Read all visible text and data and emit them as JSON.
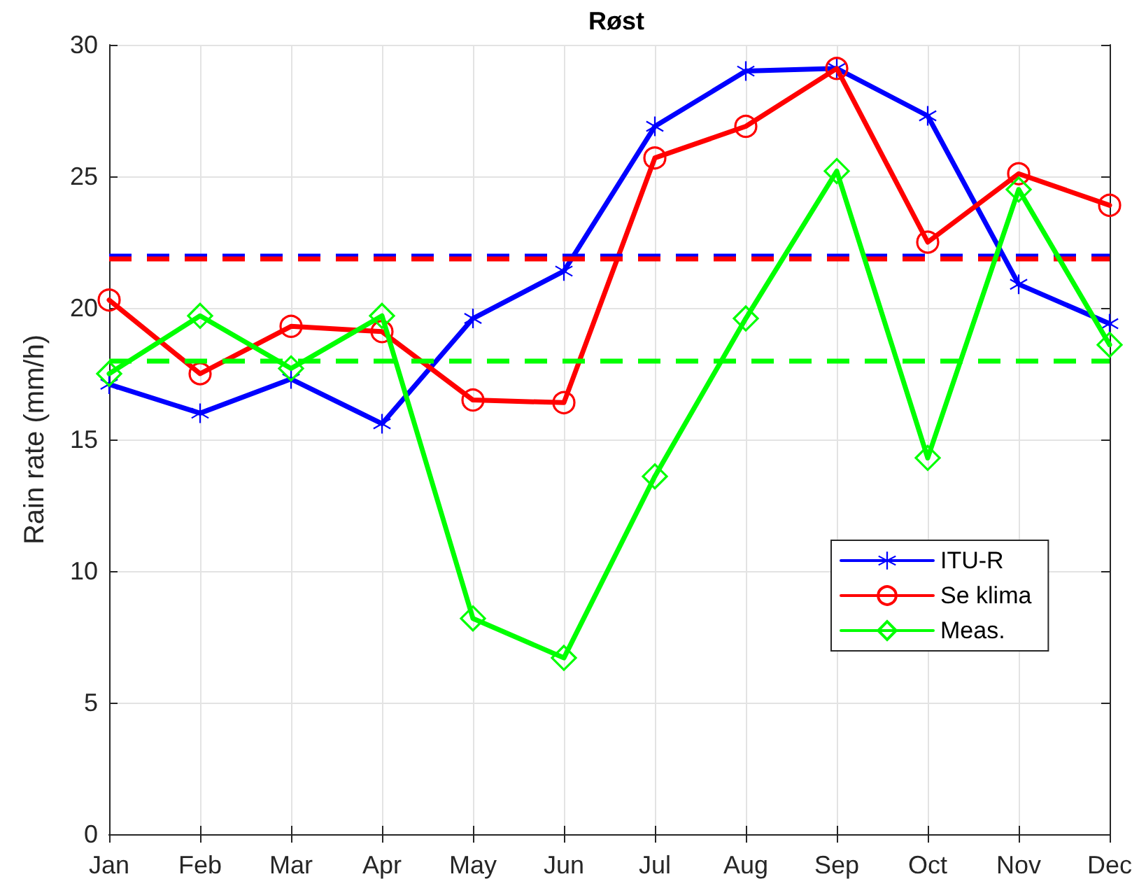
{
  "chart_data": {
    "type": "line",
    "title": "Røst",
    "ylabel": "Rain rate (mm/h)",
    "categories": [
      "Jan",
      "Feb",
      "Mar",
      "Apr",
      "May",
      "Jun",
      "Jul",
      "Aug",
      "Sep",
      "Oct",
      "Nov",
      "Dec"
    ],
    "series": [
      {
        "name": "ITU-R",
        "color": "#0000ff",
        "marker": "cross",
        "values": [
          17.1,
          16.0,
          17.3,
          15.6,
          19.6,
          21.4,
          26.9,
          29.0,
          29.1,
          27.3,
          20.9,
          19.4
        ]
      },
      {
        "name": "Se klima",
        "color": "#ff0000",
        "marker": "circle",
        "values": [
          20.3,
          17.5,
          19.3,
          19.1,
          16.5,
          16.4,
          25.7,
          26.9,
          29.1,
          22.5,
          25.1,
          23.9
        ]
      },
      {
        "name": "Meas.",
        "color": "#00ff00",
        "marker": "diamond",
        "values": [
          17.5,
          19.7,
          17.7,
          19.7,
          8.2,
          6.7,
          13.6,
          19.6,
          25.2,
          14.3,
          24.5,
          18.6
        ]
      }
    ],
    "ylim": [
      0,
      30
    ],
    "yticks": [
      0,
      5,
      10,
      15,
      20,
      25,
      30
    ],
    "grid": true,
    "legend": "right",
    "line_style": "solid",
    "ref_lines": [
      {
        "axis": "y",
        "value": 22.0,
        "color": "#0000ff",
        "line_style": "dashed"
      },
      {
        "axis": "y",
        "value": 21.9,
        "color": "#ff0000",
        "line_style": "dashed"
      },
      {
        "axis": "y",
        "value": 18.0,
        "color": "#00ff00",
        "line_style": "dashed"
      }
    ]
  }
}
